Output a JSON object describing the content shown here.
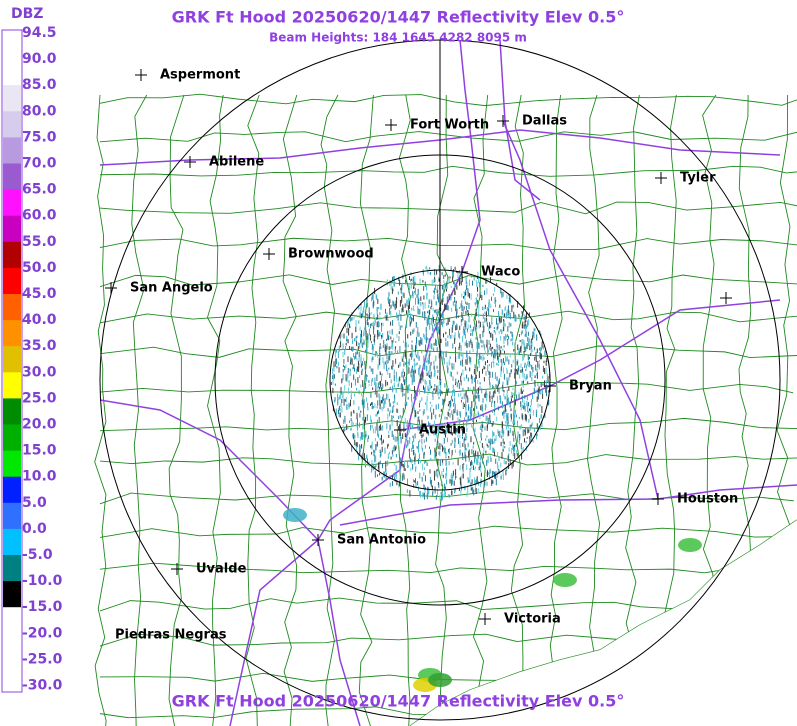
{
  "header": {
    "title": "GRK Ft Hood 20250620/1447 Reflectivity Elev 0.5°",
    "subtitle": "Beam Heights: 184 1645 4282 8095 m"
  },
  "footer": {
    "title": "GRK Ft Hood 20250620/1447 Reflectivity Elev 0.5°"
  },
  "legend": {
    "title": "DBZ",
    "labels": [
      "94.5",
      "90.0",
      "85.0",
      "80.0",
      "75.0",
      "70.0",
      "65.0",
      "60.0",
      "55.0",
      "50.0",
      "45.0",
      "40.0",
      "35.0",
      "30.0",
      "25.0",
      "20.0",
      "15.0",
      "10.0",
      "5.0",
      "0.0",
      "-5.0",
      "-10.0",
      "-15.0",
      "-20.0",
      "-25.0",
      "-30.0"
    ]
  },
  "cities": [
    "Aspermont",
    "Fort Worth",
    "Dallas",
    "Abilene",
    "Tyler",
    "Brownwood",
    "Waco",
    "San Angelo",
    "Bryan",
    "Austin",
    "Houston",
    "San Antonio",
    "Uvalde",
    "Victoria",
    "Piedras Negras"
  ]
}
